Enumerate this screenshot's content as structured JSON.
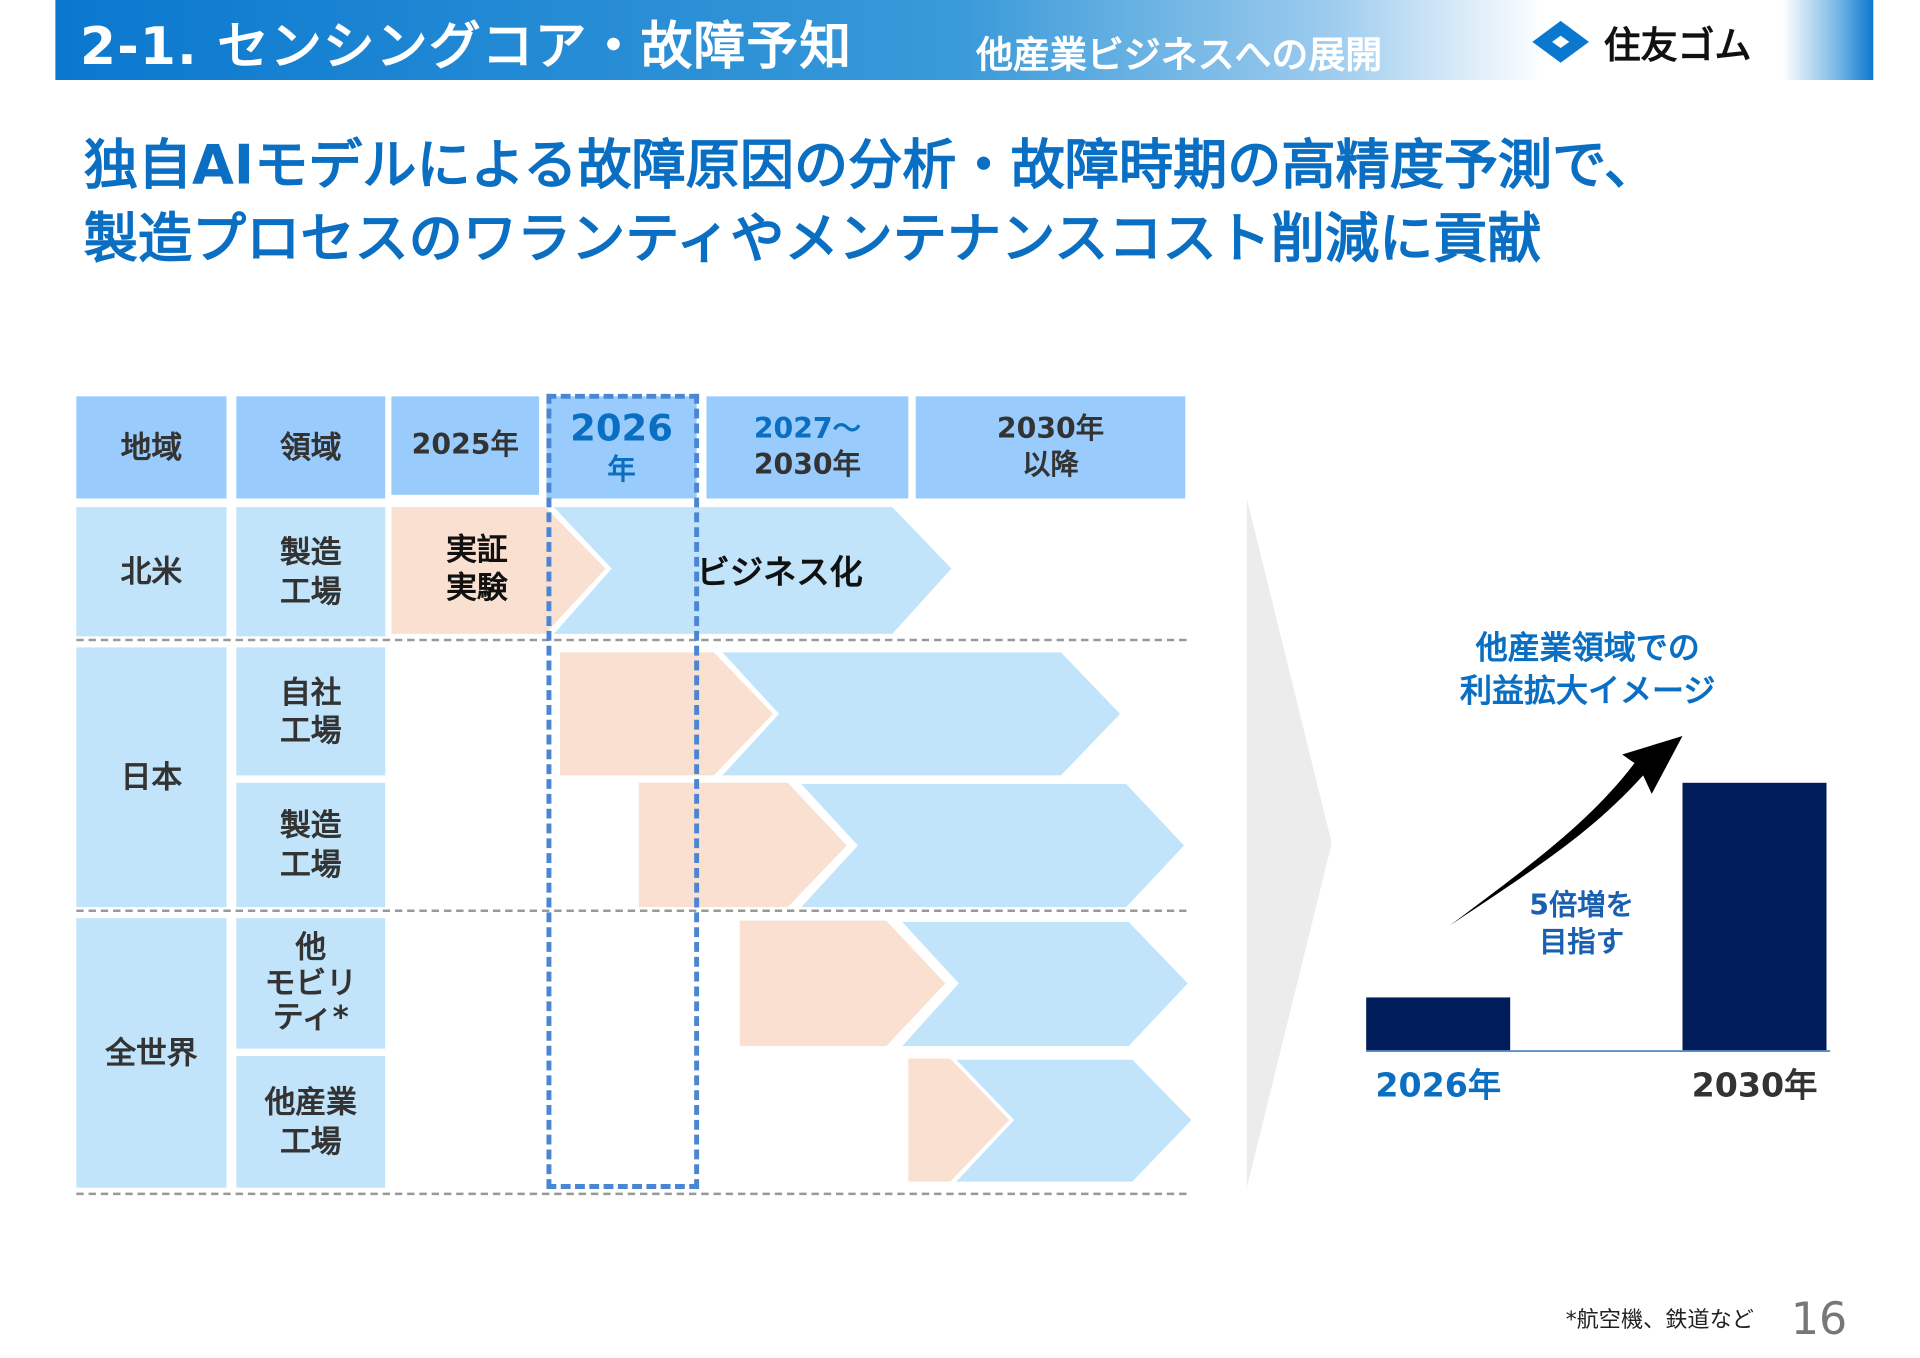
{
  "header": {
    "title": "2-1. センシングコア・故障予知",
    "subtitle": "他産業ビジネスへの展開",
    "logo_text": "住友ゴム"
  },
  "headline": {
    "line1": "独自AIモデルによる故障原因の分析・故障時期の高精度予測で、",
    "line2": "製造プロセスのワランティやメンテナンスコスト削減に貢献"
  },
  "roadmap": {
    "columns": [
      "地域",
      "領域",
      "2025年",
      "2026",
      "年",
      "2027〜",
      "2030年",
      "2030年",
      "以降"
    ],
    "regions": [
      {
        "name": "北米",
        "fields": [
          {
            "l1": "製造",
            "l2": "工場"
          }
        ]
      },
      {
        "name": "日本",
        "fields": [
          {
            "l1": "自社",
            "l2": "工場"
          },
          {
            "l1": "製造",
            "l2": "工場"
          }
        ]
      },
      {
        "name": "全世界",
        "fields": [
          {
            "l1": "他",
            "l2": "モビリ",
            "l3": "ティ*"
          },
          {
            "l1": "他産業",
            "l2": "工場"
          }
        ]
      }
    ],
    "trial_label_1": "実証",
    "trial_label_2": "実験",
    "business_label": "ビジネス化",
    "colors": {
      "trial": "#f9e0d0",
      "business": "#c1e4fb",
      "highlight": "#4a86d4"
    }
  },
  "chart_data": {
    "type": "bar",
    "title": "他産業領域での利益拡大イメージ",
    "title_line1": "他産業領域での",
    "title_line2": "利益拡大イメージ",
    "categories": [
      "2026年",
      "2030年"
    ],
    "values": [
      1,
      5
    ],
    "annotation_line1": "5倍増を",
    "annotation_line2": "目指す",
    "xlabel": "",
    "ylabel": "",
    "ylim": [
      0,
      5.2
    ],
    "bar_color": "#001c5a"
  },
  "footer": {
    "footnote": "*航空機、鉄道など",
    "page_number": "16"
  }
}
